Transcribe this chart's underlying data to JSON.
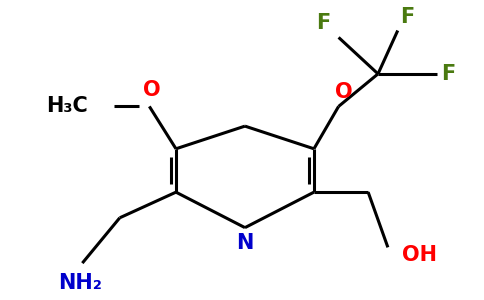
{
  "background_color": "#ffffff",
  "bond_color": "#000000",
  "bond_width": 2.2,
  "colors": {
    "N": "#0000cc",
    "O": "#ff0000",
    "F": "#4a7a10",
    "C_label": "#000000",
    "NH2": "#0000cc",
    "OH": "#ff0000"
  },
  "label_fontsize": 15,
  "figsize": [
    4.84,
    3.0
  ],
  "dpi": 100
}
